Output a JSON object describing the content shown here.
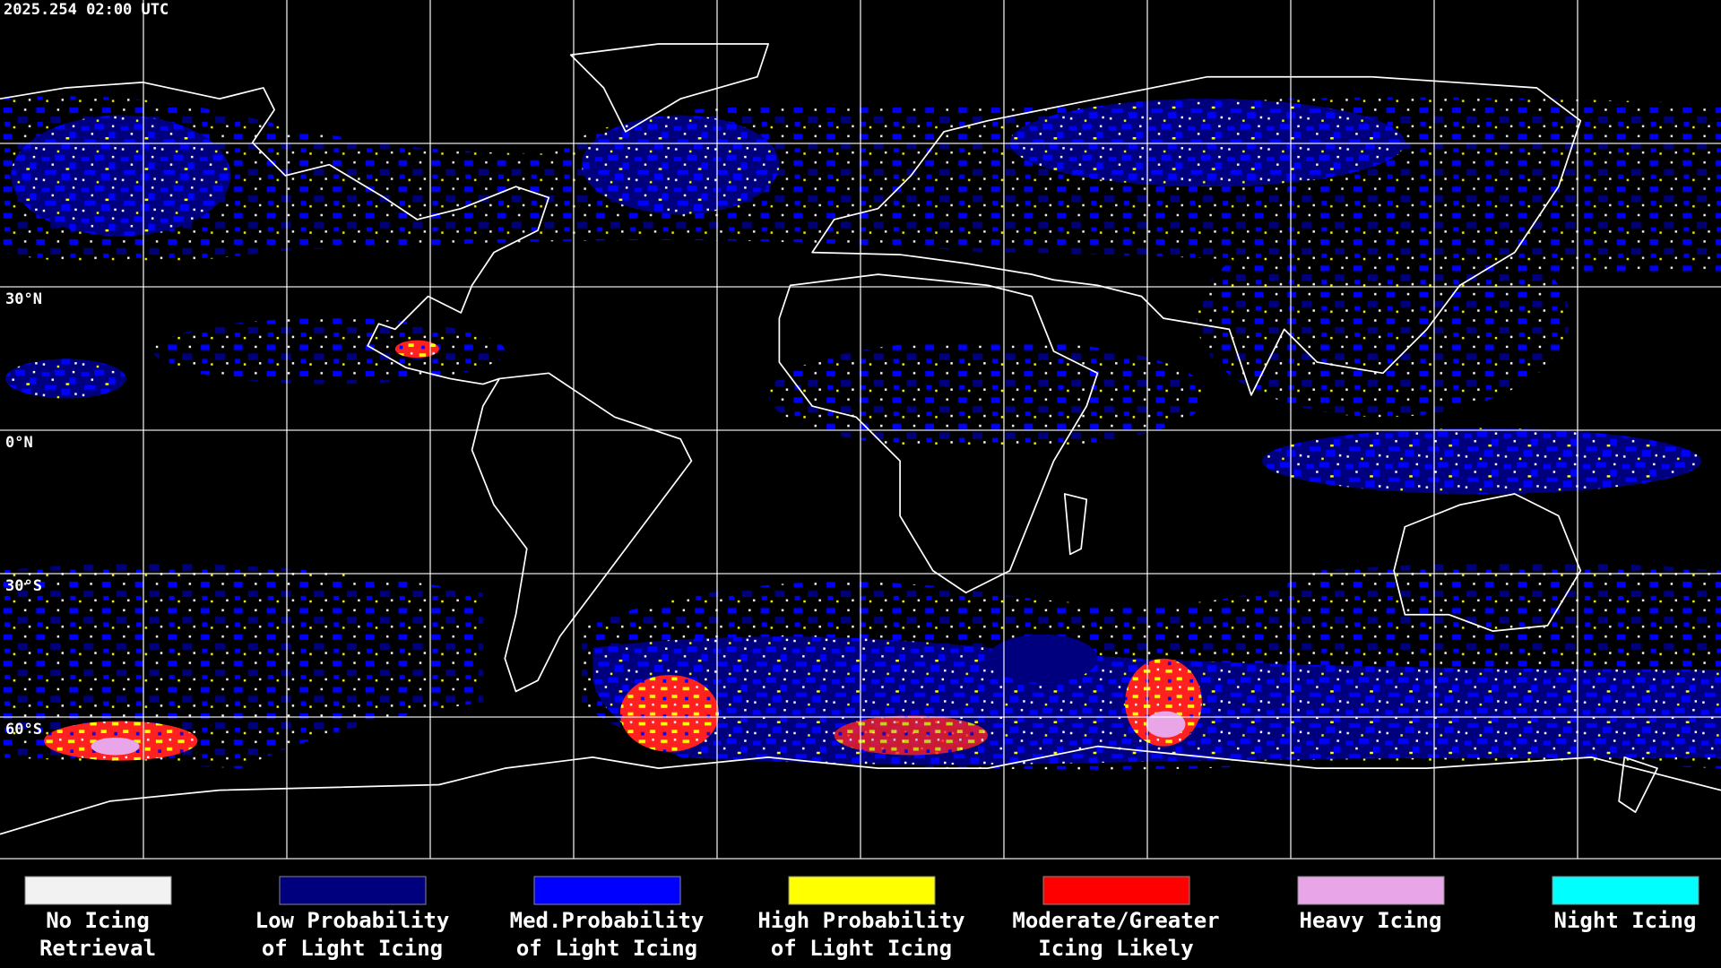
{
  "header": {
    "timestamp": "2025.254 02:00 UTC"
  },
  "map": {
    "latitude_labels": [
      "30°N",
      "0°N",
      "30°S",
      "60°S"
    ]
  },
  "legend": {
    "items": [
      {
        "color": "#f2f2f2",
        "label_lines": [
          "No Icing",
          "Retrieval"
        ]
      },
      {
        "color": "#00007f",
        "label_lines": [
          "Low Probability",
          "of Light Icing"
        ]
      },
      {
        "color": "#0000ff",
        "label_lines": [
          "Med.Probability",
          "of Light Icing"
        ]
      },
      {
        "color": "#ffff00",
        "label_lines": [
          "High Probability",
          "of Light Icing"
        ]
      },
      {
        "color": "#ff0000",
        "label_lines": [
          "Moderate/Greater",
          "Icing Likely"
        ]
      },
      {
        "color": "#e8a6e8",
        "label_lines": [
          "Heavy Icing"
        ]
      },
      {
        "color": "#00ffff",
        "label_lines": [
          "Night Icing"
        ]
      }
    ]
  }
}
